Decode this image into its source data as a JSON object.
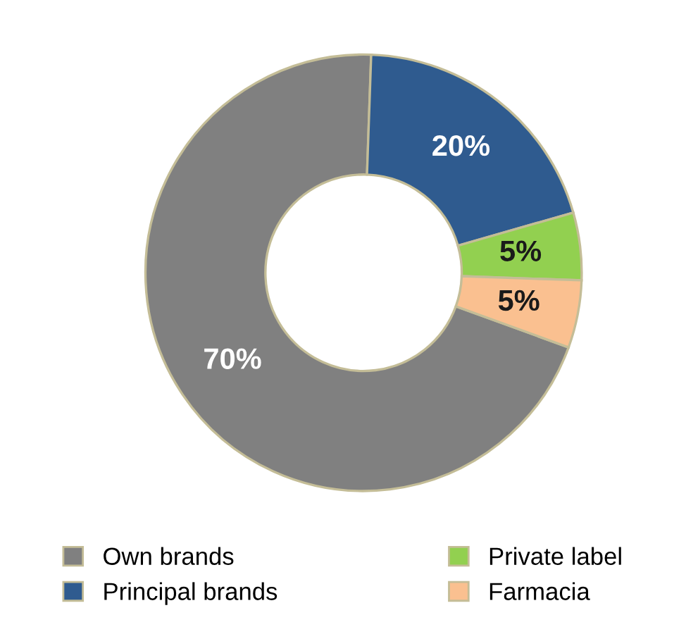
{
  "chart_data": {
    "type": "donut",
    "categories": [
      "Own brands",
      "Principal brands",
      "Private label",
      "Farmacia"
    ],
    "values": [
      70,
      20,
      5,
      5
    ],
    "colors": [
      "#808080",
      "#2f5b8f",
      "#92d050",
      "#fac090"
    ],
    "value_labels": [
      "70%",
      "20%",
      "5%",
      "5%"
    ],
    "legend": "bottom"
  }
}
